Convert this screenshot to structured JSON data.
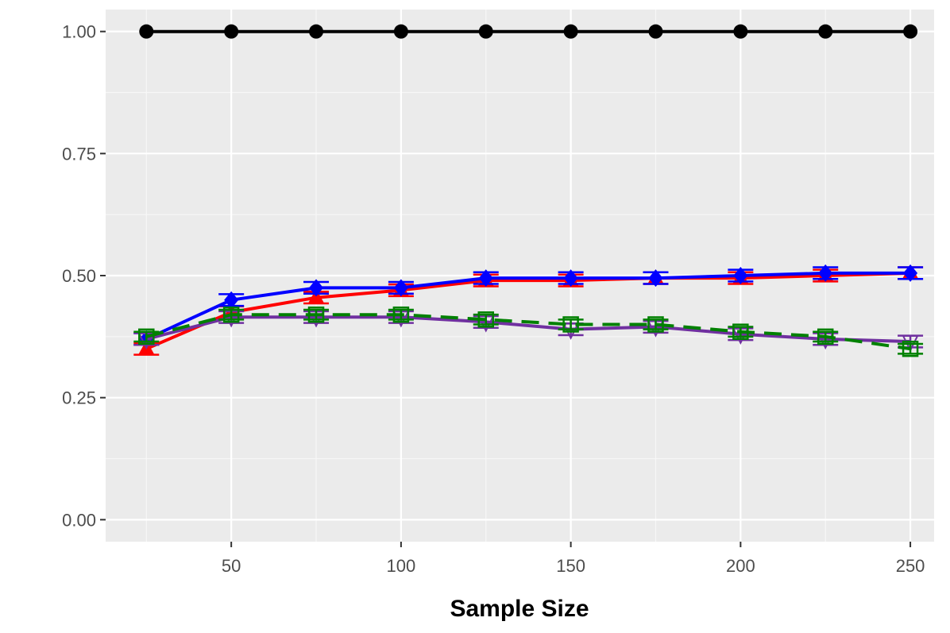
{
  "chart_data": {
    "type": "line",
    "title": "",
    "xlabel": "Sample Size",
    "ylabel": "",
    "xlim": [
      13,
      257
    ],
    "ylim": [
      -0.045,
      1.045
    ],
    "x_ticks": [
      50,
      100,
      150,
      200,
      250
    ],
    "x_tick_labels": [
      "50",
      "100",
      "150",
      "200",
      "250"
    ],
    "y_ticks": [
      0.0,
      0.25,
      0.5,
      0.75,
      1.0
    ],
    "y_tick_labels": [
      "0.00",
      "0.25",
      "0.50",
      "0.75",
      "1.00"
    ],
    "grid": true,
    "legend": "none",
    "x": [
      25,
      50,
      75,
      100,
      125,
      150,
      175,
      200,
      225,
      250
    ],
    "series": [
      {
        "color": "#000000",
        "line_style": "solid",
        "marker": "circle-filled",
        "values": [
          1.0,
          1.0,
          1.0,
          1.0,
          1.0,
          1.0,
          1.0,
          1.0,
          1.0,
          1.0
        ],
        "error": [
          0,
          0,
          0,
          0,
          0,
          0,
          0,
          0,
          0,
          0
        ]
      },
      {
        "color": "#ff0000",
        "line_style": "solid",
        "marker": "triangle-filled",
        "values": [
          0.35,
          0.425,
          0.455,
          0.47,
          0.49,
          0.49,
          0.495,
          0.495,
          0.5,
          0.505
        ],
        "error": [
          0.012,
          0.012,
          0.012,
          0.012,
          0.012,
          0.012,
          0.012,
          0.012,
          0.012,
          0.012
        ]
      },
      {
        "color": "#0000ff",
        "line_style": "solid",
        "marker": "diamond-filled",
        "values": [
          0.37,
          0.45,
          0.475,
          0.475,
          0.495,
          0.495,
          0.495,
          0.5,
          0.505,
          0.505
        ],
        "error": [
          0.012,
          0.012,
          0.012,
          0.012,
          0.012,
          0.012,
          0.012,
          0.012,
          0.012,
          0.012
        ]
      },
      {
        "color": "#7030a0",
        "line_style": "solid",
        "marker": "triangle-down-open",
        "values": [
          0.37,
          0.415,
          0.415,
          0.415,
          0.405,
          0.39,
          0.395,
          0.38,
          0.37,
          0.365
        ],
        "error": [
          0.012,
          0.012,
          0.012,
          0.012,
          0.012,
          0.012,
          0.012,
          0.012,
          0.012,
          0.012
        ]
      },
      {
        "color": "#008000",
        "line_style": "dashed",
        "marker": "square-open",
        "values": [
          0.375,
          0.42,
          0.42,
          0.42,
          0.41,
          0.4,
          0.4,
          0.385,
          0.375,
          0.35
        ],
        "error": [
          0.01,
          0.01,
          0.01,
          0.01,
          0.01,
          0.01,
          0.01,
          0.01,
          0.01,
          0.01
        ]
      }
    ]
  }
}
